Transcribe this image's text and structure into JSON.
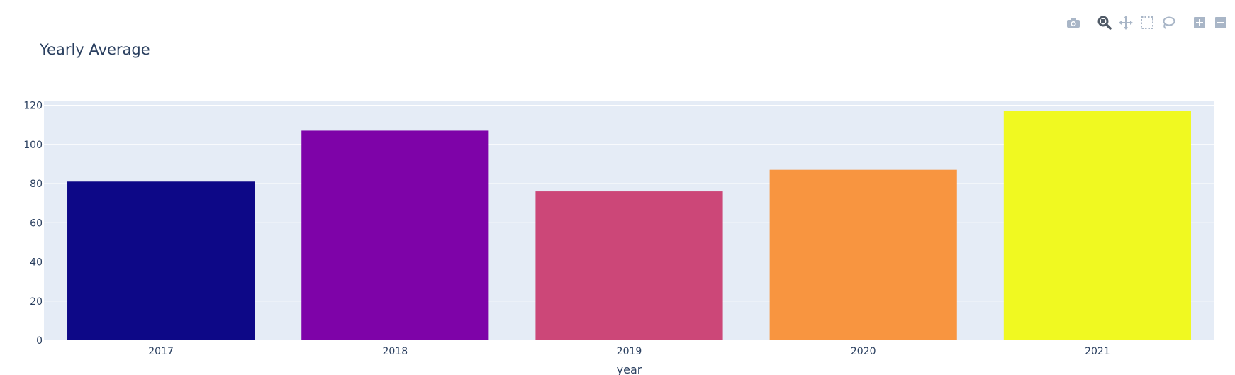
{
  "modebar": {
    "buttons": [
      {
        "name": "camera-icon",
        "group": 0
      },
      {
        "name": "zoom-icon",
        "group": 1
      },
      {
        "name": "pan-icon",
        "group": 1
      },
      {
        "name": "box-select-icon",
        "group": 1
      },
      {
        "name": "lasso-select-icon",
        "group": 1
      },
      {
        "name": "zoom-in-icon",
        "group": 2
      },
      {
        "name": "zoom-out-icon",
        "group": 2
      }
    ],
    "icon_color": "#a9b6c7",
    "active_color": "#505a67"
  },
  "chart_data": {
    "type": "bar",
    "title": "Yearly Average",
    "xlabel": "year",
    "ylabel": "",
    "categories": [
      "2017",
      "2018",
      "2019",
      "2020",
      "2021"
    ],
    "values": [
      81,
      107,
      76,
      87,
      117
    ],
    "colors": [
      "#0d0887",
      "#7e03a8",
      "#cc4778",
      "#f89540",
      "#f0f921"
    ],
    "ylim": [
      0,
      122
    ],
    "yticks": [
      0,
      20,
      40,
      60,
      80,
      100,
      120
    ],
    "grid": true,
    "plot_bg": "#e5ecf6",
    "legend": "none"
  }
}
